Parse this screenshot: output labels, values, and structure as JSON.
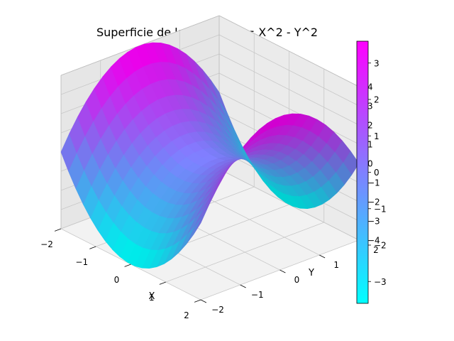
{
  "chart_data": {
    "type": "surface3d",
    "title": "Superficie de la funcion Z = X^2 - Y^2",
    "xlabel": "X",
    "ylabel": "Y",
    "zlabel": "",
    "function": "Z = X^2 - Y^2",
    "x_range": [
      -2,
      2
    ],
    "y_range": [
      -2,
      2
    ],
    "zlim": [
      -4,
      4
    ],
    "grid_points": 20,
    "x_ticks": [
      -2,
      -1,
      0,
      1,
      2
    ],
    "y_ticks": [
      -2,
      -1,
      0,
      1,
      2
    ],
    "z_ticks": [
      -4,
      -3,
      -2,
      -1,
      0,
      1,
      2,
      3,
      4
    ],
    "grid": true,
    "colormap": "cool",
    "colormap_colors": [
      "#00ffff",
      "#ff00ff"
    ],
    "colorbar": {
      "range": [
        -3.6,
        3.6
      ],
      "ticks": [
        -3,
        -2,
        -1,
        0,
        1,
        2,
        3
      ],
      "placement": "right"
    }
  }
}
